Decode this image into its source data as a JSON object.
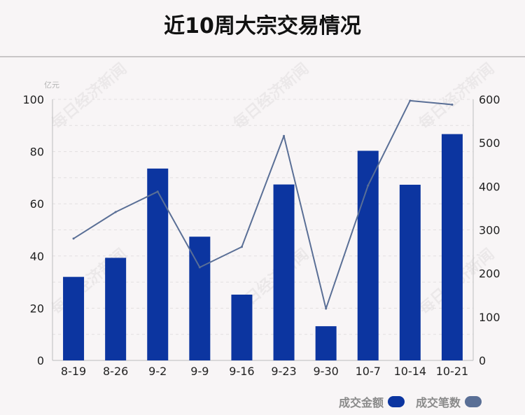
{
  "chart_data": {
    "type": "bar",
    "title": "近10周大宗交易情况",
    "categories": [
      "8-19",
      "8-26",
      "9-2",
      "9-9",
      "9-16",
      "9-23",
      "9-30",
      "10-7",
      "10-14",
      "10-21"
    ],
    "series": [
      {
        "name": "成交金额",
        "type": "bar",
        "axis": "left",
        "color": "#0c35a0",
        "values": [
          32.0,
          39.3,
          73.5,
          47.4,
          25.2,
          67.4,
          13.1,
          80.3,
          67.3,
          86.7
        ]
      },
      {
        "name": "成交笔数",
        "type": "line",
        "axis": "right",
        "color": "#5a6f96",
        "values": [
          280,
          341,
          388,
          214,
          261,
          516,
          119,
          402,
          597,
          588
        ]
      }
    ],
    "y_left": {
      "unit": "亿元",
      "ylim": [
        0,
        100
      ],
      "ticks": [
        0,
        20,
        40,
        60,
        80,
        100
      ]
    },
    "y_right": {
      "ylim": [
        0,
        600
      ],
      "ticks": [
        0,
        100,
        200,
        300,
        400,
        500,
        600
      ]
    },
    "grid": true,
    "legend_position": "bottom-right",
    "watermark": "每日经济新闻"
  }
}
